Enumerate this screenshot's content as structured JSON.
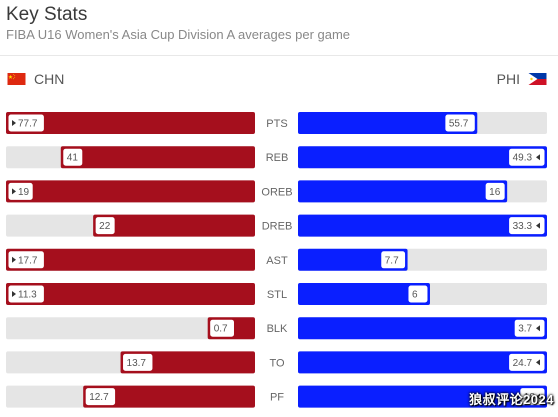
{
  "header": {
    "title": "Key Stats",
    "subtitle": "FIBA U16 Women's Asia Cup Division A averages per game"
  },
  "teams": {
    "left": {
      "name": "CHN",
      "color": "#a50f1d",
      "flag": "china-flag-icon"
    },
    "right": {
      "name": "PHI",
      "color": "#0a1fff",
      "flag": "philippines-flag-icon"
    }
  },
  "watermark": "狼叔评论2024",
  "chart_data": {
    "type": "bar",
    "orientation": "horizontal",
    "layout": "butterfly",
    "categories": [
      "PTS",
      "REB",
      "OREB",
      "DREB",
      "AST",
      "STL",
      "BLK",
      "TO",
      "PF"
    ],
    "series": [
      {
        "name": "CHN",
        "color": "#a50f1d",
        "values": [
          77.7,
          41,
          19,
          22,
          17.7,
          11.3,
          0.7,
          13.7,
          12.7
        ],
        "labels": [
          "77.7",
          "41",
          "19",
          "22",
          "17.7",
          "11.3",
          "0.7",
          "13.7",
          "12.7"
        ],
        "fill_fraction": [
          1.0,
          0.78,
          1.0,
          0.65,
          1.0,
          1.0,
          0.19,
          0.54,
          0.69
        ]
      },
      {
        "name": "PHI",
        "color": "#0a1fff",
        "values": [
          55.7,
          49.3,
          16,
          33.3,
          7.7,
          6,
          3.7,
          24.7,
          18
        ],
        "labels": [
          "55.7",
          "49.3",
          "16",
          "33.3",
          "7.7",
          "6",
          "3.7",
          "24.7",
          "18"
        ],
        "fill_fraction": [
          0.72,
          1.0,
          0.84,
          1.0,
          0.44,
          0.53,
          1.0,
          1.0,
          1.0
        ]
      }
    ],
    "leader_marker": "triangle"
  }
}
